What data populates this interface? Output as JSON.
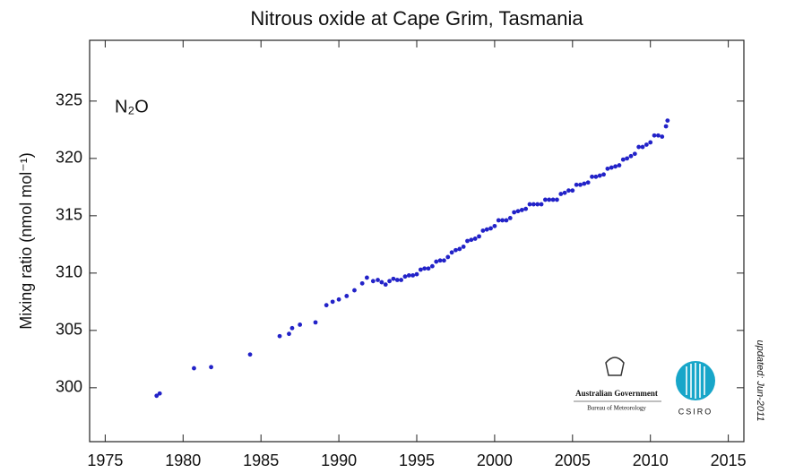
{
  "chart_data": {
    "type": "scatter",
    "title": "Nitrous oxide at Cape Grim, Tasmania",
    "y_label": "Mixing ratio (nmol mol⁻¹)",
    "annotations": [
      "N₂O",
      "updated: Jun-2011",
      "Australian Government",
      "Bureau of Meteorology",
      "CSIRO"
    ],
    "color": "#2222c8",
    "xlim": [
      1974,
      2016
    ],
    "xticks": [
      1975,
      1980,
      1985,
      1990,
      1995,
      2000,
      2005,
      2010,
      2015
    ],
    "ylim": [
      295.3,
      330.3
    ],
    "yticks": [
      300,
      305,
      310,
      315,
      320,
      325
    ],
    "x": [
      1978.3,
      1978.5,
      1980.7,
      1981.8,
      1984.3,
      1986.2,
      1986.8,
      1987.0,
      1987.5,
      1988.5,
      1989.2,
      1989.6,
      1990.0,
      1990.5,
      1991.0,
      1991.5,
      1991.8,
      1992.2,
      1992.5,
      1992.75,
      1993.0,
      1993.25,
      1993.5,
      1993.75,
      1994.0,
      1994.25,
      1994.5,
      1994.75,
      1995.0,
      1995.25,
      1995.5,
      1995.75,
      1996.0,
      1996.25,
      1996.5,
      1996.75,
      1997.0,
      1997.25,
      1997.5,
      1997.75,
      1998.0,
      1998.25,
      1998.5,
      1998.75,
      1999.0,
      1999.25,
      1999.5,
      1999.75,
      2000.0,
      2000.25,
      2000.5,
      2000.75,
      2001.0,
      2001.25,
      2001.5,
      2001.75,
      2002.0,
      2002.25,
      2002.5,
      2002.75,
      2003.0,
      2003.25,
      2003.5,
      2003.75,
      2004.0,
      2004.25,
      2004.5,
      2004.75,
      2005.0,
      2005.25,
      2005.5,
      2005.75,
      2006.0,
      2006.25,
      2006.5,
      2006.75,
      2007.0,
      2007.25,
      2007.5,
      2007.75,
      2008.0,
      2008.25,
      2008.5,
      2008.75,
      2009.0,
      2009.25,
      2009.5,
      2009.75,
      2010.0,
      2010.25,
      2010.5,
      2010.75,
      2011.0,
      2011.1
    ],
    "values": [
      299.3,
      299.5,
      301.7,
      301.8,
      302.9,
      304.5,
      304.7,
      305.2,
      305.5,
      305.7,
      307.2,
      307.5,
      307.7,
      308.0,
      308.5,
      309.1,
      309.6,
      309.3,
      309.4,
      309.2,
      309.0,
      309.3,
      309.5,
      309.4,
      309.4,
      309.7,
      309.8,
      309.8,
      309.9,
      310.3,
      310.4,
      310.4,
      310.6,
      311.0,
      311.1,
      311.1,
      311.4,
      311.8,
      312.0,
      312.1,
      312.3,
      312.8,
      312.9,
      313.0,
      313.2,
      313.7,
      313.8,
      313.9,
      314.1,
      314.6,
      314.6,
      314.6,
      314.8,
      315.3,
      315.4,
      315.5,
      315.6,
      316.0,
      316.0,
      316.0,
      316.0,
      316.4,
      316.4,
      316.4,
      316.4,
      316.9,
      317.0,
      317.2,
      317.2,
      317.7,
      317.7,
      317.8,
      317.9,
      318.4,
      318.4,
      318.5,
      318.6,
      319.1,
      319.2,
      319.3,
      319.4,
      319.9,
      320.0,
      320.2,
      320.4,
      321.0,
      321.0,
      321.2,
      321.4,
      322.0,
      322.0,
      321.9,
      322.8,
      323.3
    ]
  }
}
